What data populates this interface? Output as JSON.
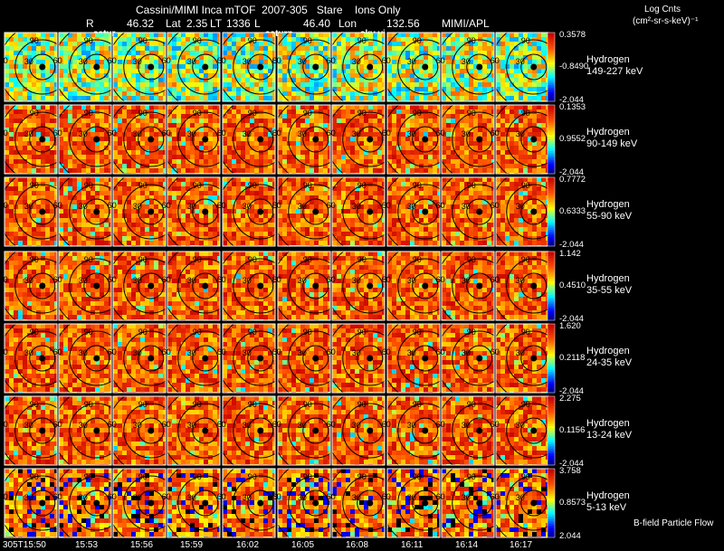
{
  "header": {
    "title": "Cassini/MIMI Inca mTOF  2007-305   Stare    Ions Only",
    "r_label": "R",
    "r_value": "46.32",
    "lat_label": "Lat",
    "lat_value": "2.35",
    "lt_label": "LT",
    "lt_value": "1336",
    "l_label": "L",
    "l_value": "46.40",
    "lon_label": "Lon",
    "lon_value": "132.56",
    "org": "MIMI/APL",
    "units_line1": "Log Cnts",
    "units_line2": "(cm²-sr-s-keV)⁻¹"
  },
  "panel_labels": [
    "satur",
    "saturn",
    "sky vi"
  ],
  "footer": {
    "bfield": "B-field Particle Flow"
  },
  "chart_data": {
    "type": "heatmap",
    "title": "Cassini/MIMI Inca mTOF  2007-305   Stare    Ions Only",
    "colorbar_label": "Log Cnts (cm²-sr-s-keV)⁻¹",
    "time_labels": [
      "305T15:50",
      "15:53",
      "15:56",
      "15:59",
      "16:02",
      "16:05",
      "16:08",
      "16:11",
      "16:14",
      "16:17"
    ],
    "contour_labels": [
      "30",
      "60",
      "90"
    ],
    "channels": [
      {
        "species": "Hydrogen",
        "energy": "149-227 keV",
        "max": "0.3578",
        "mid": "-0.8490",
        "min": "-2.044",
        "palette": "cool"
      },
      {
        "species": "Hydrogen",
        "energy": "90-149 keV",
        "max": "0.1353",
        "mid": "0.9552",
        "min": "-2.044",
        "palette": "warm"
      },
      {
        "species": "Hydrogen",
        "energy": "55-90 keV",
        "max": "0.7772",
        "mid": "0.6333",
        "min": "-2.044",
        "palette": "warm"
      },
      {
        "species": "Hydrogen",
        "energy": "35-55 keV",
        "max": "1.142",
        "mid": "0.4510",
        "min": "-2.044",
        "palette": "warm"
      },
      {
        "species": "Hydrogen",
        "energy": "24-35 keV",
        "max": "1.620",
        "mid": "0.2118",
        "min": "-2.044",
        "palette": "warm"
      },
      {
        "species": "Hydrogen",
        "energy": "13-24 keV",
        "max": "2.275",
        "mid": "0.1156",
        "min": "-2.044",
        "palette": "warm"
      },
      {
        "species": "Hydrogen",
        "energy": "5-13 keV",
        "max": "3.758",
        "mid": "0.8573",
        "min": "2.044",
        "palette": "mixed"
      }
    ]
  }
}
